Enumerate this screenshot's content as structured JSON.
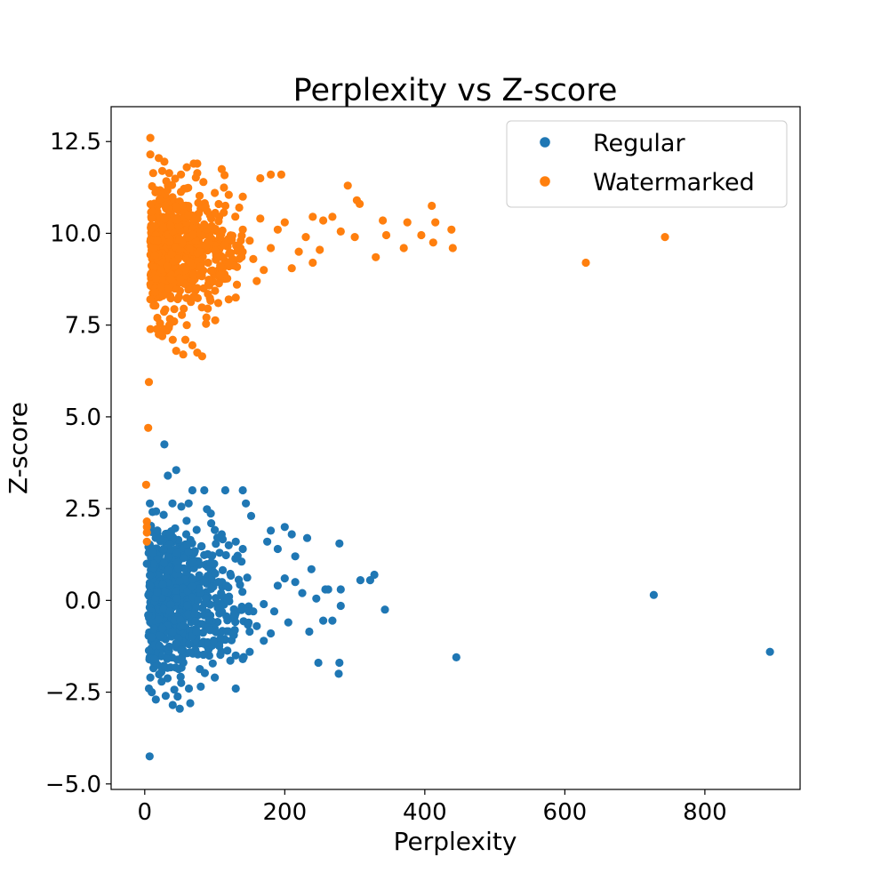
{
  "chart_data": {
    "type": "scatter",
    "title": "Perplexity vs Z-score",
    "xlabel": "Perplexity",
    "ylabel": "Z-score",
    "xlim": [
      -48,
      936
    ],
    "ylim": [
      -5.15,
      13.45
    ],
    "xticks": [
      0,
      200,
      400,
      600,
      800
    ],
    "xtick_labels": [
      "0",
      "200",
      "400",
      "600",
      "800"
    ],
    "yticks": [
      -5.0,
      -2.5,
      0.0,
      2.5,
      5.0,
      7.5,
      10.0,
      12.5
    ],
    "ytick_labels": [
      "−5.0",
      "−2.5",
      "0.0",
      "2.5",
      "5.0",
      "7.5",
      "10.0",
      "12.5"
    ],
    "legend_position": "top-right",
    "grid": false,
    "series": [
      {
        "name": "Regular",
        "color": "#1f77b4",
        "cluster": {
          "count": 650,
          "x_range": [
            5,
            150
          ],
          "y_mean": 0.0,
          "y_sd": 1.1,
          "note": "dense bulk of points, estimated"
        },
        "points": [
          [
            28,
            4.25
          ],
          [
            33,
            3.4
          ],
          [
            45,
            3.55
          ],
          [
            68,
            3.0
          ],
          [
            85,
            3.0
          ],
          [
            115,
            3.0
          ],
          [
            140,
            3.0
          ],
          [
            152,
            2.3
          ],
          [
            180,
            1.9
          ],
          [
            200,
            2.0
          ],
          [
            210,
            1.8
          ],
          [
            175,
            1.6
          ],
          [
            190,
            1.4
          ],
          [
            215,
            1.2
          ],
          [
            232,
            1.7
          ],
          [
            238,
            0.85
          ],
          [
            278,
            1.55
          ],
          [
            308,
            0.55
          ],
          [
            322,
            0.55
          ],
          [
            328,
            0.7
          ],
          [
            258,
            0.3
          ],
          [
            262,
            0.3
          ],
          [
            280,
            0.3
          ],
          [
            245,
            0.05
          ],
          [
            215,
            0.5
          ],
          [
            200,
            0.6
          ],
          [
            190,
            0.4
          ],
          [
            225,
            0.2
          ],
          [
            170,
            -0.1
          ],
          [
            185,
            -0.3
          ],
          [
            205,
            -0.6
          ],
          [
            235,
            -0.85
          ],
          [
            255,
            -0.55
          ],
          [
            268,
            -0.55
          ],
          [
            280,
            -0.15
          ],
          [
            343,
            -0.25
          ],
          [
            180,
            -0.9
          ],
          [
            170,
            -1.1
          ],
          [
            150,
            -1.4
          ],
          [
            140,
            -1.6
          ],
          [
            130,
            -1.5
          ],
          [
            160,
            -0.7
          ],
          [
            155,
            -0.3
          ],
          [
            248,
            -1.7
          ],
          [
            278,
            -1.7
          ],
          [
            277,
            -2.0
          ],
          [
            445,
            -1.55
          ],
          [
            727,
            0.15
          ],
          [
            893,
            -1.4
          ],
          [
            130,
            -2.4
          ],
          [
            100,
            -2.1
          ],
          [
            80,
            -2.35
          ],
          [
            65,
            -2.8
          ],
          [
            40,
            -2.85
          ],
          [
            30,
            -2.6
          ],
          [
            50,
            -2.95
          ],
          [
            7,
            -4.25
          ],
          [
            6,
            -2.4
          ],
          [
            10,
            -2.5
          ],
          [
            8,
            -2.1
          ],
          [
            5,
            -0.4
          ],
          [
            3,
            1.0
          ],
          [
            12,
            1.3
          ],
          [
            10,
            -1.0
          ],
          [
            14,
            -1.6
          ],
          [
            110,
            1.8
          ],
          [
            95,
            2.1
          ],
          [
            120,
            1.5
          ],
          [
            130,
            1.6
          ],
          [
            140,
            1.4
          ]
        ]
      },
      {
        "name": "Watermarked",
        "color": "#ff7f0e",
        "cluster": {
          "count": 650,
          "x_range": [
            8,
            140
          ],
          "y_mean": 9.6,
          "y_sd": 0.85,
          "note": "dense bulk of points, estimated"
        },
        "points": [
          [
            8,
            12.6
          ],
          [
            8,
            12.15
          ],
          [
            20,
            12.05
          ],
          [
            28,
            11.95
          ],
          [
            25,
            11.7
          ],
          [
            60,
            11.8
          ],
          [
            70,
            11.9
          ],
          [
            75,
            11.9
          ],
          [
            110,
            11.75
          ],
          [
            165,
            11.5
          ],
          [
            180,
            11.6
          ],
          [
            195,
            11.6
          ],
          [
            290,
            11.3
          ],
          [
            303,
            10.9
          ],
          [
            307,
            10.8
          ],
          [
            410,
            10.75
          ],
          [
            415,
            10.3
          ],
          [
            438,
            10.1
          ],
          [
            340,
            10.35
          ],
          [
            345,
            9.95
          ],
          [
            370,
            9.6
          ],
          [
            375,
            10.3
          ],
          [
            395,
            9.95
          ],
          [
            412,
            9.75
          ],
          [
            440,
            9.6
          ],
          [
            330,
            9.35
          ],
          [
            300,
            9.9
          ],
          [
            280,
            10.05
          ],
          [
            268,
            10.45
          ],
          [
            255,
            10.35
          ],
          [
            240,
            10.45
          ],
          [
            250,
            9.55
          ],
          [
            230,
            9.9
          ],
          [
            240,
            9.2
          ],
          [
            220,
            9.5
          ],
          [
            210,
            9.05
          ],
          [
            200,
            10.3
          ],
          [
            190,
            10.1
          ],
          [
            180,
            9.6
          ],
          [
            170,
            9.0
          ],
          [
            160,
            8.7
          ],
          [
            150,
            9.8
          ],
          [
            140,
            10.1
          ],
          [
            155,
            9.3
          ],
          [
            165,
            10.4
          ],
          [
            630,
            9.2
          ],
          [
            743,
            9.9
          ],
          [
            6,
            5.95
          ],
          [
            5,
            4.7
          ],
          [
            2,
            3.15
          ],
          [
            3,
            2.15
          ],
          [
            3,
            2.0
          ],
          [
            3,
            1.85
          ],
          [
            3,
            1.6
          ],
          [
            25,
            7.2
          ],
          [
            32,
            7.35
          ],
          [
            40,
            7.1
          ],
          [
            45,
            6.8
          ],
          [
            55,
            6.7
          ],
          [
            58,
            7.1
          ],
          [
            68,
            6.95
          ],
          [
            75,
            6.75
          ],
          [
            82,
            6.65
          ],
          [
            60,
            7.5
          ],
          [
            42,
            7.6
          ],
          [
            35,
            7.5
          ],
          [
            20,
            7.25
          ],
          [
            90,
            7.95
          ],
          [
            105,
            8.1
          ],
          [
            120,
            8.2
          ],
          [
            130,
            8.25
          ],
          [
            12,
            8.25
          ],
          [
            8,
            8.2
          ],
          [
            15,
            8.4
          ],
          [
            18,
            9.8
          ],
          [
            10,
            10.6
          ],
          [
            14,
            10.2
          ],
          [
            135,
            10.7
          ],
          [
            140,
            11.0
          ],
          [
            120,
            11.05
          ],
          [
            100,
            11.1
          ]
        ]
      }
    ]
  }
}
